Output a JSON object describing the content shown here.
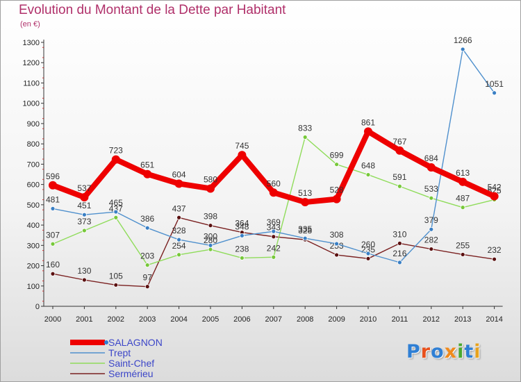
{
  "title": "Evolution du Montant de la Dette par Habitant",
  "unit": "(en €)",
  "logo": {
    "text": "Proxiti",
    "letter_colors": [
      "#2f7fd4",
      "#e8501c",
      "#2f7fd4",
      "#f08a1c",
      "#4aa82f",
      "#2f7fd4",
      "#e8a21c"
    ]
  },
  "chart_data": {
    "type": "line",
    "x": [
      "2000",
      "2001",
      "2002",
      "2003",
      "2004",
      "2005",
      "2006",
      "2007",
      "2008",
      "2009",
      "2010",
      "2011",
      "2012",
      "2013",
      "2014"
    ],
    "ylim": [
      0,
      1300
    ],
    "yticks": [
      "0",
      "100",
      "200",
      "300",
      "400",
      "500",
      "600",
      "700",
      "800",
      "900",
      "1000",
      "1100",
      "1200",
      "1300"
    ],
    "grid": false,
    "legend_position": "bottom-left",
    "series": [
      {
        "name": "SALAGNON",
        "color": "#ee0000",
        "marker_color": "#2f7fd4",
        "bold": true,
        "values": [
          596,
          537,
          723,
          651,
          604,
          580,
          745,
          560,
          513,
          528,
          861,
          767,
          684,
          613,
          542
        ],
        "labels": [
          "596",
          "537",
          "723",
          "651",
          "604",
          "580",
          "745",
          "560",
          "513",
          "528",
          "861",
          "767",
          "684",
          "613",
          "542"
        ]
      },
      {
        "name": "Trept",
        "color": "#4f90cd",
        "marker_color": "#3a7fc4",
        "bold": false,
        "values": [
          481,
          451,
          465,
          386,
          328,
          300,
          348,
          369,
          335,
          308,
          260,
          216,
          379,
          1266,
          1051
        ],
        "labels": [
          "481",
          "451",
          "465",
          "386",
          "328",
          "300",
          "348",
          "369",
          "335",
          "308",
          "260",
          "216",
          "379",
          "1266",
          "1051"
        ]
      },
      {
        "name": "Saint-Chef",
        "color": "#8fdc5a",
        "marker_color": "#77c83a",
        "bold": false,
        "values": [
          307,
          373,
          437,
          203,
          254,
          280,
          238,
          242,
          833,
          699,
          648,
          591,
          533,
          487,
          525
        ],
        "labels": [
          "307",
          "373",
          "437",
          "203",
          "254",
          "280",
          "238",
          "242",
          "833",
          "699",
          "648",
          "591",
          "533",
          "487",
          "525"
        ]
      },
      {
        "name": "Sermérieu",
        "color": "#7a2020",
        "marker_color": "#5a1010",
        "bold": false,
        "values": [
          160,
          130,
          105,
          97,
          437,
          398,
          364,
          343,
          328,
          253,
          235,
          310,
          282,
          255,
          232
        ],
        "labels": [
          "160",
          "130",
          "105",
          "97",
          "437",
          "398",
          "364",
          "343",
          "328",
          "253",
          "235",
          "310",
          "282",
          "255",
          "232"
        ]
      }
    ]
  }
}
